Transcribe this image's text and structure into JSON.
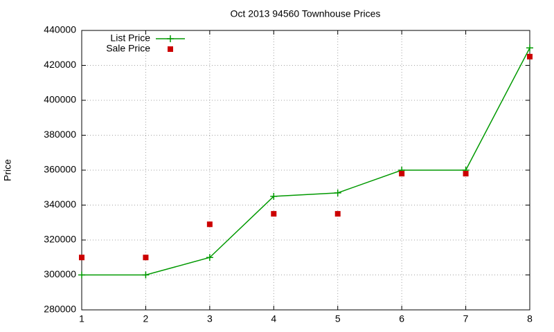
{
  "chart_data": {
    "type": "line",
    "title": "Oct 2013 94560 Townhouse Prices",
    "y_label": "Price",
    "x": [
      1,
      2,
      3,
      4,
      5,
      6,
      7,
      8
    ],
    "series": [
      {
        "name": "List Price",
        "color": "#009900",
        "line": true,
        "marker": "plus",
        "values": [
          300000,
          300000,
          310000,
          345000,
          347000,
          360000,
          360000,
          430000
        ]
      },
      {
        "name": "Sale Price",
        "color": "#cc0000",
        "line": false,
        "marker": "square",
        "values": [
          310000,
          310000,
          329000,
          335000,
          335000,
          358000,
          358000,
          425000
        ]
      }
    ],
    "xlim": [
      1,
      8
    ],
    "xticks": [
      1,
      2,
      3,
      4,
      5,
      6,
      7,
      8
    ],
    "ylim": [
      280000,
      440000
    ],
    "yticks": [
      280000,
      300000,
      320000,
      340000,
      360000,
      380000,
      400000,
      420000,
      440000
    ],
    "grid": true,
    "legend": "top-left"
  }
}
